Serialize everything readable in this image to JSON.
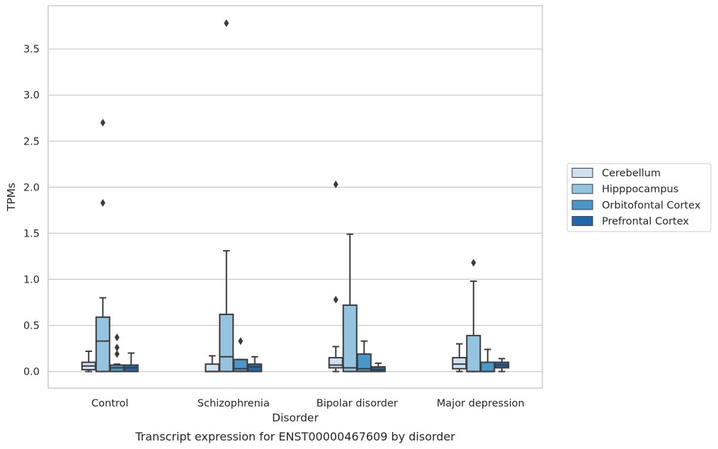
{
  "caption": "Transcript expression for ENST00000467609 by disorder",
  "chart_data": {
    "type": "box",
    "xlabel": "Disorder",
    "ylabel": "TPMs",
    "ylim": [
      -0.18,
      3.97
    ],
    "yticks": [
      0.0,
      0.5,
      1.0,
      1.5,
      2.0,
      2.5,
      3.0,
      3.5
    ],
    "ytick_labels": [
      "0.0",
      "0.5",
      "1.0",
      "1.5",
      "2.0",
      "2.5",
      "3.0",
      "3.5"
    ],
    "grid": "horizontal",
    "legend_position": "right",
    "categories": [
      "Control",
      "Schizophrenia",
      "Bipolar disorder",
      "Major depression"
    ],
    "series": [
      {
        "name": "Cerebellum",
        "color": "#d0e1f2",
        "boxes": [
          {
            "whislo": 0.0,
            "q1": 0.02,
            "med": 0.06,
            "q3": 0.1,
            "whishi": 0.22,
            "fliers": []
          },
          {
            "whislo": 0.0,
            "q1": 0.0,
            "med": 0.0,
            "q3": 0.08,
            "whishi": 0.17,
            "fliers": []
          },
          {
            "whislo": 0.0,
            "q1": 0.04,
            "med": 0.07,
            "q3": 0.15,
            "whishi": 0.27,
            "fliers": [
              0.78,
              2.03
            ]
          },
          {
            "whislo": 0.0,
            "q1": 0.03,
            "med": 0.08,
            "q3": 0.15,
            "whishi": 0.3,
            "fliers": []
          }
        ]
      },
      {
        "name": "Hipppocampus",
        "color": "#94c4df",
        "boxes": [
          {
            "whislo": 0.0,
            "q1": 0.0,
            "med": 0.33,
            "q3": 0.59,
            "whishi": 0.8,
            "fliers": [
              1.83,
              2.7
            ]
          },
          {
            "whislo": 0.0,
            "q1": 0.0,
            "med": 0.16,
            "q3": 0.62,
            "whishi": 1.31,
            "fliers": [
              3.78
            ]
          },
          {
            "whislo": 0.0,
            "q1": 0.0,
            "med": 0.04,
            "q3": 0.72,
            "whishi": 1.49,
            "fliers": []
          },
          {
            "whislo": 0.0,
            "q1": 0.0,
            "med": 0.0,
            "q3": 0.39,
            "whishi": 0.98,
            "fliers": [
              1.18
            ]
          }
        ]
      },
      {
        "name": "Orbitofontal Cortex",
        "color": "#4a98c9",
        "boxes": [
          {
            "whislo": 0.0,
            "q1": 0.0,
            "med": 0.04,
            "q3": 0.07,
            "whishi": 0.08,
            "fliers": [
              0.19,
              0.26,
              0.37
            ]
          },
          {
            "whislo": 0.0,
            "q1": 0.0,
            "med": 0.03,
            "q3": 0.13,
            "whishi": 0.13,
            "fliers": [
              0.33
            ]
          },
          {
            "whislo": 0.0,
            "q1": 0.0,
            "med": 0.03,
            "q3": 0.19,
            "whishi": 0.33,
            "fliers": []
          },
          {
            "whislo": 0.0,
            "q1": 0.0,
            "med": 0.0,
            "q3": 0.1,
            "whishi": 0.24,
            "fliers": []
          }
        ]
      },
      {
        "name": "Prefrontal Cortex",
        "color": "#2166ac",
        "boxes": [
          {
            "whislo": 0.0,
            "q1": 0.0,
            "med": 0.04,
            "q3": 0.07,
            "whishi": 0.2,
            "fliers": []
          },
          {
            "whislo": 0.0,
            "q1": 0.0,
            "med": 0.05,
            "q3": 0.08,
            "whishi": 0.16,
            "fliers": []
          },
          {
            "whislo": 0.0,
            "q1": 0.0,
            "med": 0.02,
            "q3": 0.05,
            "whishi": 0.09,
            "fliers": []
          },
          {
            "whislo": 0.0,
            "q1": 0.04,
            "med": 0.07,
            "q3": 0.1,
            "whishi": 0.14,
            "fliers": []
          }
        ]
      }
    ]
  }
}
